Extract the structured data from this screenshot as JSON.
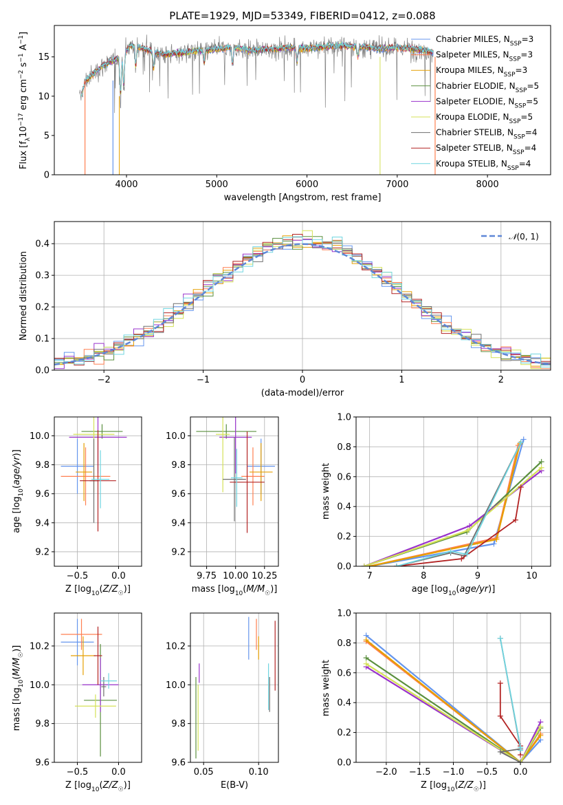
{
  "colors": {
    "Chabrier MILES": "#6495ed",
    "Salpeter MILES": "#ff7f50",
    "Kroupa MILES": "#e69f00",
    "Chabrier ELODIE": "#5a8f3e",
    "Salpeter ELODIE": "#9932cc",
    "Kroupa ELODIE": "#d4e157",
    "Chabrier STELIB": "#6e6e6e",
    "Salpeter STELIB": "#b22222",
    "Kroupa STELIB": "#6fd5e0"
  },
  "chart_data": [
    {
      "id": "spectrum",
      "type": "line",
      "title": "PLATE=1929, MJD=53349, FIBERID=0412, z=0.088",
      "xlabel": "wavelength [Angstrom, rest frame]",
      "ylabel": "Flux [f_λ10^{-17} erg cm^{-2} s^{-1} A^{-1}]",
      "xlim": [
        3200,
        8700
      ],
      "ylim": [
        0,
        19
      ],
      "xticks": [
        4000,
        5000,
        6000,
        7000,
        8000
      ],
      "yticks": [
        0,
        5,
        10,
        15
      ],
      "grid": false,
      "legend_position": "right",
      "series": [
        {
          "name": "Chabrier MILES",
          "nssp": 3
        },
        {
          "name": "Salpeter MILES",
          "nssp": 3
        },
        {
          "name": "Kroupa MILES",
          "nssp": 3
        },
        {
          "name": "Chabrier ELODIE",
          "nssp": 5
        },
        {
          "name": "Salpeter ELODIE",
          "nssp": 5
        },
        {
          "name": "Kroupa ELODIE",
          "nssp": 5
        },
        {
          "name": "Chabrier STELIB",
          "nssp": 4
        },
        {
          "name": "Salpeter STELIB",
          "nssp": 4
        },
        {
          "name": "Kroupa STELIB",
          "nssp": 4
        }
      ],
      "spectrum_shape": {
        "x": [
          3480,
          3550,
          3650,
          3750,
          3850,
          3950,
          4050,
          4200,
          4400,
          4600,
          4800,
          5000,
          5200,
          5400,
          5600,
          5800,
          6000,
          6200,
          6400,
          6600,
          6800,
          7000,
          7200,
          7400
        ],
        "y": [
          9.5,
          12.0,
          13.0,
          14.0,
          14.5,
          15.2,
          16.5,
          16.0,
          15.3,
          15.5,
          15.8,
          16.0,
          16.2,
          15.8,
          16.0,
          16.2,
          16.1,
          16.3,
          16.4,
          16.3,
          16.0,
          16.2,
          16.0,
          15.6
        ]
      }
    },
    {
      "id": "residuals",
      "type": "line",
      "xlabel": "(data-model)/error",
      "ylabel": "Normed distribution",
      "xlim": [
        -2.5,
        2.5
      ],
      "ylim": [
        0,
        0.47
      ],
      "xticks": [
        -2,
        -1,
        0,
        1,
        2
      ],
      "yticks": [
        0.0,
        0.1,
        0.2,
        0.3,
        0.4
      ],
      "grid": true,
      "legend_position": "top-right",
      "legend_label": "N(0,1)",
      "bin_width": 0.1
    },
    {
      "id": "age-vs-Z",
      "type": "scatter",
      "xlabel": "Z [log10(Z/Z☉)]",
      "ylabel": "age [log10(age/yr)]",
      "xlim": [
        -0.78,
        0.28
      ],
      "ylim": [
        9.1,
        10.13
      ],
      "xticks": [
        -0.5,
        0.0
      ],
      "yticks": [
        9.2,
        9.4,
        9.6,
        9.8,
        10.0
      ],
      "grid": true,
      "points": [
        {
          "model": "Chabrier MILES",
          "x": -0.5,
          "xerr": 0.2,
          "y": 9.79,
          "yerr": 0.19
        },
        {
          "model": "Salpeter MILES",
          "x": -0.4,
          "xerr": 0.3,
          "y": 9.72,
          "yerr": 0.2
        },
        {
          "model": "Kroupa MILES",
          "x": -0.42,
          "xerr": 0.1,
          "y": 9.75,
          "yerr": 0.2
        },
        {
          "model": "Chabrier ELODIE",
          "x": -0.2,
          "xerr": 0.25,
          "y": 10.03,
          "yerr": 0.05
        },
        {
          "model": "Salpeter ELODIE",
          "x": -0.25,
          "xerr": 0.35,
          "y": 9.99,
          "yerr": 0.25
        },
        {
          "model": "Kroupa ELODIE",
          "x": -0.3,
          "xerr": 0.25,
          "y": 10.01,
          "yerr": 0.4
        },
        {
          "model": "Chabrier STELIB",
          "x": -0.3,
          "xerr": 0.05,
          "y": 9.69,
          "yerr": 0.29
        },
        {
          "model": "Salpeter STELIB",
          "x": -0.25,
          "xerr": 0.22,
          "y": 9.69,
          "yerr": 0.35
        },
        {
          "model": "Kroupa STELIB",
          "x": -0.22,
          "xerr": 0.11,
          "y": 9.7,
          "yerr": 0.2
        }
      ]
    },
    {
      "id": "age-vs-mass",
      "type": "scatter",
      "xlabel": "mass [log10(M/M☉)]",
      "ylabel": "",
      "xlim": [
        9.61,
        10.37
      ],
      "ylim": [
        9.1,
        10.13
      ],
      "xticks": [
        9.75,
        10.0,
        10.25
      ],
      "yticks": [
        9.2,
        9.4,
        9.6,
        9.8,
        10.0
      ],
      "grid": true,
      "points": [
        {
          "model": "Chabrier MILES",
          "x": 10.22,
          "xerr": 0.12,
          "y": 9.79,
          "yerr": 0.19
        },
        {
          "model": "Salpeter MILES",
          "x": 10.15,
          "xerr": 0.1,
          "y": 9.72,
          "yerr": 0.2
        },
        {
          "model": "Kroupa MILES",
          "x": 10.22,
          "xerr": 0.1,
          "y": 9.75,
          "yerr": 0.2
        },
        {
          "model": "Chabrier ELODIE",
          "x": 9.92,
          "xerr": 0.26,
          "y": 10.03,
          "yerr": 0.05
        },
        {
          "model": "Salpeter ELODIE",
          "x": 10.0,
          "xerr": 0.14,
          "y": 9.99,
          "yerr": 0.25
        },
        {
          "model": "Kroupa ELODIE",
          "x": 9.89,
          "xerr": 0.06,
          "y": 10.01,
          "yerr": 0.4
        },
        {
          "model": "Chabrier STELIB",
          "x": 9.99,
          "xerr": 0.1,
          "y": 9.7,
          "yerr": 0.29
        },
        {
          "model": "Salpeter STELIB",
          "x": 10.1,
          "xerr": 0.15,
          "y": 9.68,
          "yerr": 0.35
        },
        {
          "model": "Kroupa STELIB",
          "x": 10.01,
          "xerr": 0.05,
          "y": 9.71,
          "yerr": 0.2
        }
      ]
    },
    {
      "id": "weight-vs-age",
      "type": "line",
      "xlabel": "age [log10(age/yr)]",
      "ylabel": "mass weight",
      "xlim": [
        6.75,
        10.35
      ],
      "ylim": [
        0,
        1.0
      ],
      "xticks": [
        7,
        8,
        9,
        10
      ],
      "yticks": [
        0.0,
        0.2,
        0.4,
        0.6,
        0.8,
        1.0
      ],
      "grid": true,
      "series": [
        {
          "name": "Chabrier MILES",
          "x": [
            7.0,
            9.3,
            9.85
          ],
          "y": [
            0.0,
            0.15,
            0.85
          ]
        },
        {
          "name": "Salpeter MILES",
          "x": [
            7.0,
            9.35,
            9.75
          ],
          "y": [
            0.0,
            0.19,
            0.81
          ]
        },
        {
          "name": "Kroupa MILES",
          "x": [
            7.0,
            9.35,
            9.78
          ],
          "y": [
            0.0,
            0.18,
            0.82
          ]
        },
        {
          "name": "Chabrier ELODIE",
          "x": [
            6.9,
            8.8,
            10.18
          ],
          "y": [
            0.0,
            0.23,
            0.7
          ]
        },
        {
          "name": "Salpeter ELODIE",
          "x": [
            6.9,
            8.85,
            10.18
          ],
          "y": [
            0.0,
            0.27,
            0.64
          ]
        },
        {
          "name": "Kroupa ELODIE",
          "x": [
            6.9,
            8.82,
            10.18
          ],
          "y": [
            0.0,
            0.24,
            0.66
          ]
        },
        {
          "name": "Chabrier STELIB",
          "x": [
            7.5,
            8.5,
            8.75,
            9.8
          ],
          "y": [
            0.0,
            0.09,
            0.07,
            0.83
          ]
        },
        {
          "name": "Salpeter STELIB",
          "x": [
            7.5,
            8.7,
            9.7,
            9.8
          ],
          "y": [
            0.0,
            0.05,
            0.31,
            0.53
          ]
        },
        {
          "name": "Kroupa STELIB",
          "x": [
            7.5,
            8.5,
            8.8,
            9.8
          ],
          "y": [
            0.0,
            0.1,
            0.08,
            0.83
          ]
        }
      ]
    },
    {
      "id": "mass-vs-Z",
      "type": "scatter",
      "xlabel": "Z [log10(Z/Z☉)]",
      "ylabel": "mass [log10(M/M☉)]",
      "xlim": [
        -0.78,
        0.28
      ],
      "ylim": [
        9.6,
        10.37
      ],
      "xticks": [
        -0.5,
        0.0
      ],
      "yticks": [
        9.6,
        9.8,
        10.0,
        10.2
      ],
      "grid": true,
      "points": [
        {
          "model": "Chabrier MILES",
          "x": -0.5,
          "xerr": 0.2,
          "y": 10.22,
          "yerr": 0.12
        },
        {
          "model": "Salpeter MILES",
          "x": -0.45,
          "xerr": 0.25,
          "y": 10.26,
          "yerr": 0.08
        },
        {
          "model": "Kroupa MILES",
          "x": -0.43,
          "xerr": 0.15,
          "y": 10.15,
          "yerr": 0.1
        },
        {
          "model": "Chabrier ELODIE",
          "x": -0.22,
          "xerr": 0.2,
          "y": 9.92,
          "yerr": 0.29
        },
        {
          "model": "Salpeter ELODIE",
          "x": -0.22,
          "xerr": 0.22,
          "y": 10.0,
          "yerr": 0.14
        },
        {
          "model": "Kroupa ELODIE",
          "x": -0.28,
          "xerr": 0.25,
          "y": 9.89,
          "yerr": 0.06
        },
        {
          "model": "Chabrier STELIB",
          "x": -0.18,
          "xerr": 0.03,
          "y": 9.99,
          "yerr": 0.05
        },
        {
          "model": "Salpeter STELIB",
          "x": -0.25,
          "xerr": 0.05,
          "y": 10.15,
          "yerr": 0.15
        },
        {
          "model": "Kroupa STELIB",
          "x": -0.12,
          "xerr": 0.1,
          "y": 10.02,
          "yerr": 0.04
        }
      ]
    },
    {
      "id": "mass-vs-ebv",
      "type": "scatter",
      "xlabel": "E(B-V)",
      "ylabel": "",
      "xlim": [
        0.038,
        0.118
      ],
      "ylim": [
        9.6,
        10.37
      ],
      "xticks": [
        0.05,
        0.1
      ],
      "yticks": [
        9.6,
        9.8,
        10.0,
        10.2
      ],
      "grid": true,
      "points": [
        {
          "model": "Chabrier MILES",
          "x": 0.091,
          "y": 10.24,
          "yerr": 0.11
        },
        {
          "model": "Salpeter MILES",
          "x": 0.098,
          "y": 10.26,
          "yerr": 0.08
        },
        {
          "model": "Kroupa MILES",
          "x": 0.1,
          "y": 10.19,
          "yerr": 0.06
        },
        {
          "model": "Chabrier ELODIE",
          "x": 0.043,
          "y": 9.83,
          "yerr": 0.21
        },
        {
          "model": "Salpeter ELODIE",
          "x": 0.046,
          "y": 10.06,
          "yerr": 0.05
        },
        {
          "model": "Kroupa ELODIE",
          "x": 0.045,
          "y": 9.83,
          "yerr": 0.17
        },
        {
          "model": "Chabrier STELIB",
          "x": 0.11,
          "y": 9.95,
          "yerr": 0.09
        },
        {
          "model": "Salpeter STELIB",
          "x": 0.115,
          "y": 10.15,
          "yerr": 0.18
        },
        {
          "model": "Kroupa STELIB",
          "x": 0.109,
          "y": 9.99,
          "yerr": 0.12
        }
      ]
    },
    {
      "id": "weight-vs-Z",
      "type": "line",
      "xlabel": "Z [log10(Z/Z☉)]",
      "ylabel": "mass weight",
      "xlim": [
        -2.45,
        0.45
      ],
      "ylim": [
        0,
        1.0
      ],
      "xticks": [
        -2.0,
        -1.5,
        -1.0,
        -0.5,
        0.0
      ],
      "yticks": [
        0.0,
        0.2,
        0.4,
        0.6,
        0.8,
        1.0
      ],
      "grid": true,
      "series": [
        {
          "name": "Chabrier MILES",
          "x": [
            -2.3,
            0.0,
            0.3
          ],
          "y": [
            0.85,
            0.0,
            0.15
          ]
        },
        {
          "name": "Salpeter MILES",
          "x": [
            -2.3,
            0.0,
            0.3
          ],
          "y": [
            0.81,
            0.0,
            0.19
          ]
        },
        {
          "name": "Kroupa MILES",
          "x": [
            -2.3,
            0.0,
            0.3
          ],
          "y": [
            0.82,
            0.0,
            0.18
          ]
        },
        {
          "name": "Chabrier ELODIE",
          "x": [
            -2.3,
            0.0,
            0.3
          ],
          "y": [
            0.7,
            0.0,
            0.23
          ]
        },
        {
          "name": "Salpeter ELODIE",
          "x": [
            -2.3,
            0.0,
            0.3
          ],
          "y": [
            0.64,
            0.0,
            0.27
          ]
        },
        {
          "name": "Kroupa ELODIE",
          "x": [
            -2.3,
            0.0,
            0.3
          ],
          "y": [
            0.66,
            0.0,
            0.24
          ]
        },
        {
          "name": "Chabrier STELIB",
          "x": [
            -0.3,
            0.0,
            -0.3,
            0.0
          ],
          "y": [
            0.83,
            0.09,
            0.07,
            0.0
          ]
        },
        {
          "name": "Salpeter STELIB",
          "x": [
            -0.3,
            -0.3,
            0.0,
            0.0
          ],
          "y": [
            0.53,
            0.31,
            0.11,
            0.05
          ]
        },
        {
          "name": "Kroupa STELIB",
          "x": [
            -0.3,
            0.0,
            0.0
          ],
          "y": [
            0.83,
            0.1,
            0.08
          ]
        }
      ]
    }
  ]
}
